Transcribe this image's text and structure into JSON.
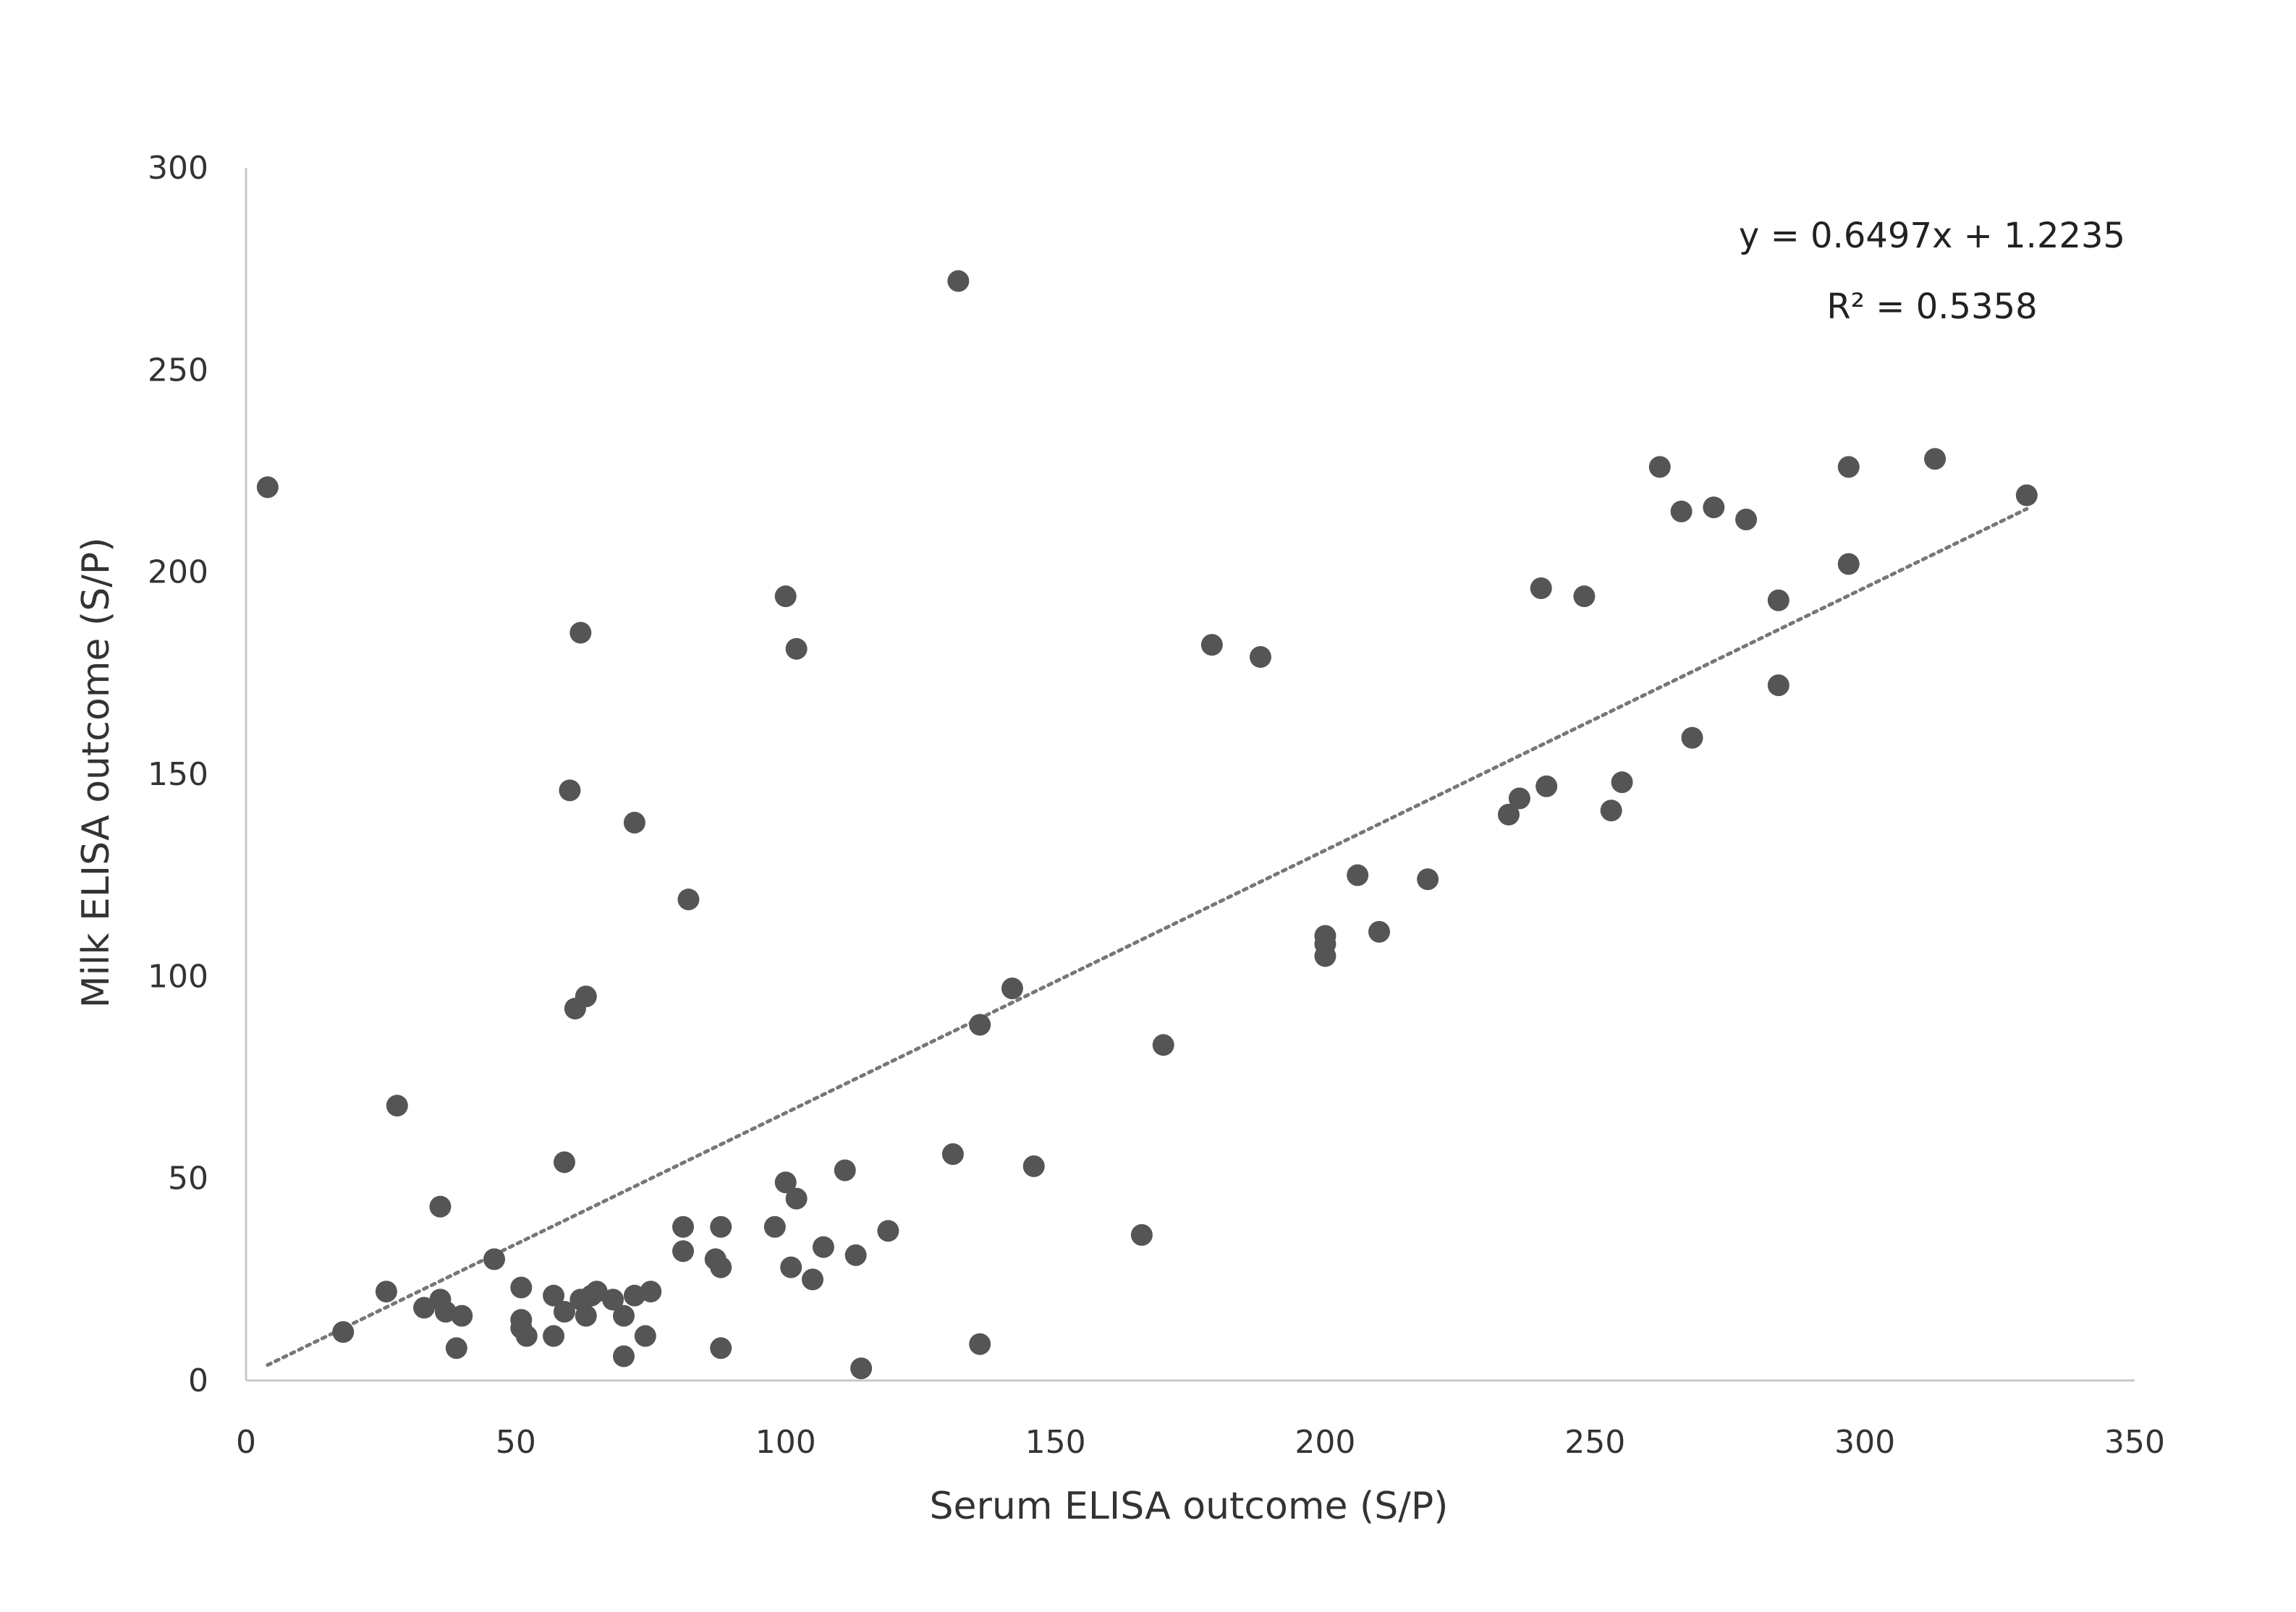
{
  "chart_data": {
    "type": "scatter",
    "title": "",
    "xlabel": "Serum ELISA outcome (S/P)",
    "ylabel": "Milk ELISA outcome (S/P)",
    "xlim": [
      0,
      350
    ],
    "ylim": [
      0,
      300
    ],
    "xticks": [
      0,
      50,
      100,
      150,
      200,
      250,
      300,
      350
    ],
    "yticks": [
      0,
      50,
      100,
      150,
      200,
      250,
      300
    ],
    "grid": false,
    "legend": "none",
    "colors": {
      "point": "#555555",
      "trendline": "#777777",
      "axis": "#c8c8c8"
    },
    "trendline": {
      "type": "linear",
      "slope": 0.6497,
      "intercept": 1.2235,
      "x_range": [
        4,
        330
      ],
      "style": "dotted"
    },
    "annotations": [
      "y = 0.6497x + 1.2235",
      "R² = 0.5358"
    ],
    "points": [
      [
        4,
        221
      ],
      [
        18,
        12
      ],
      [
        26,
        22
      ],
      [
        28,
        68
      ],
      [
        33,
        18
      ],
      [
        36,
        20
      ],
      [
        36,
        43
      ],
      [
        37,
        17
      ],
      [
        39,
        8
      ],
      [
        40,
        16
      ],
      [
        46,
        30
      ],
      [
        51,
        23
      ],
      [
        51,
        15
      ],
      [
        51,
        13
      ],
      [
        52,
        11
      ],
      [
        57,
        21
      ],
      [
        57,
        11
      ],
      [
        59,
        17
      ],
      [
        59,
        54
      ],
      [
        60,
        146
      ],
      [
        61,
        92
      ],
      [
        62,
        185
      ],
      [
        62,
        20
      ],
      [
        63,
        16
      ],
      [
        63,
        95
      ],
      [
        64,
        21
      ],
      [
        65,
        22
      ],
      [
        68,
        20
      ],
      [
        70,
        16
      ],
      [
        70,
        6
      ],
      [
        72,
        21
      ],
      [
        72,
        138
      ],
      [
        74,
        11
      ],
      [
        75,
        22
      ],
      [
        81,
        38
      ],
      [
        81,
        32
      ],
      [
        82,
        119
      ],
      [
        87,
        30
      ],
      [
        88,
        8
      ],
      [
        88,
        28
      ],
      [
        88,
        38
      ],
      [
        98,
        38
      ],
      [
        100,
        194
      ],
      [
        100,
        49
      ],
      [
        101,
        28
      ],
      [
        102,
        181
      ],
      [
        102,
        45
      ],
      [
        105,
        25
      ],
      [
        107,
        33
      ],
      [
        111,
        52
      ],
      [
        113,
        31
      ],
      [
        114,
        3
      ],
      [
        119,
        37
      ],
      [
        131,
        56
      ],
      [
        132,
        272
      ],
      [
        136,
        88
      ],
      [
        136,
        9
      ],
      [
        142,
        97
      ],
      [
        146,
        53
      ],
      [
        166,
        36
      ],
      [
        170,
        83
      ],
      [
        179,
        182
      ],
      [
        188,
        179
      ],
      [
        200,
        110
      ],
      [
        200,
        108
      ],
      [
        200,
        105
      ],
      [
        206,
        125
      ],
      [
        210,
        111
      ],
      [
        219,
        124
      ],
      [
        234,
        140
      ],
      [
        236,
        144
      ],
      [
        240,
        196
      ],
      [
        241,
        147
      ],
      [
        248,
        194
      ],
      [
        253,
        141
      ],
      [
        255,
        148
      ],
      [
        262,
        226
      ],
      [
        266,
        215
      ],
      [
        268,
        159
      ],
      [
        272,
        216
      ],
      [
        278,
        213
      ],
      [
        284,
        193
      ],
      [
        284,
        172
      ],
      [
        297,
        226
      ],
      [
        297,
        202
      ],
      [
        313,
        228
      ],
      [
        330,
        219
      ]
    ]
  }
}
